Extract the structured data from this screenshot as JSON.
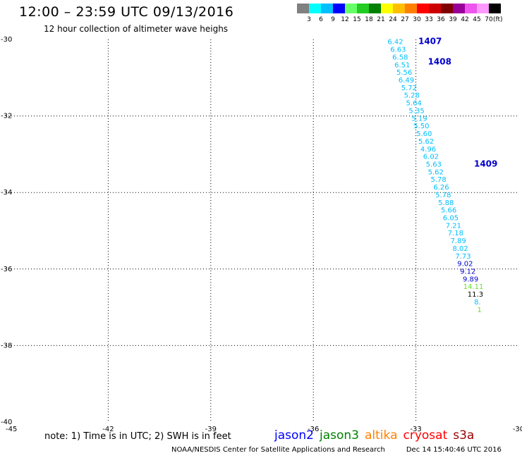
{
  "header": {
    "title": "12:00 – 23:59 UTC 09/13/2016",
    "subtitle": "12 hour collection of altimeter wave heighs"
  },
  "colorbar": {
    "colors": [
      "#808080",
      "#00ffff",
      "#00bfff",
      "#0000ff",
      "#66ff66",
      "#22cc22",
      "#008000",
      "#ffff00",
      "#ffbf00",
      "#ff8000",
      "#ff0000",
      "#cc0000",
      "#800000",
      "#990099",
      "#ee55ee",
      "#ff99ff",
      "#000000"
    ],
    "labels": [
      "3",
      "6",
      "9",
      "12",
      "15",
      "18",
      "21",
      "24",
      "27",
      "30",
      "33",
      "36",
      "39",
      "42",
      "45",
      "70"
    ],
    "unit": "(ft)"
  },
  "map": {
    "lon_ticks": [
      {
        "value": -45,
        "label": "-45"
      },
      {
        "value": -42,
        "label": "-42"
      },
      {
        "value": -39,
        "label": "-39"
      },
      {
        "value": -36,
        "label": "-36"
      },
      {
        "value": -33,
        "label": "-33"
      },
      {
        "value": -30,
        "label": "-30"
      }
    ],
    "lat_ticks": [
      {
        "value": -30,
        "label": "-30"
      },
      {
        "value": -32,
        "label": "-32"
      },
      {
        "value": -34,
        "label": "-34"
      },
      {
        "value": -36,
        "label": "-36"
      },
      {
        "value": -38,
        "label": "-38"
      },
      {
        "value": -40,
        "label": "-40"
      }
    ],
    "passes": [
      {
        "label": "1407",
        "lon": -32.93,
        "lat": -30.05,
        "color": "#0000cc"
      },
      {
        "label": "1408",
        "lon": -32.65,
        "lat": -30.58,
        "color": "#0000cc"
      },
      {
        "label": "1409",
        "lon": -31.3,
        "lat": -33.25,
        "color": "#0000cc"
      }
    ],
    "observations": [
      {
        "v": "6.42",
        "lon": -33.6,
        "lat": -30.05,
        "c": "#00bfff"
      },
      {
        "v": "6.63",
        "lon": -33.52,
        "lat": -30.25,
        "c": "#00bfff"
      },
      {
        "v": "6.58",
        "lon": -33.46,
        "lat": -30.45,
        "c": "#00bfff"
      },
      {
        "v": "6.51",
        "lon": -33.4,
        "lat": -30.65,
        "c": "#00bfff"
      },
      {
        "v": "5.56",
        "lon": -33.34,
        "lat": -30.85,
        "c": "#00bfff"
      },
      {
        "v": "6.49",
        "lon": -33.28,
        "lat": -31.05,
        "c": "#00bfff"
      },
      {
        "v": "5.72",
        "lon": -33.2,
        "lat": -31.25,
        "c": "#00bfff"
      },
      {
        "v": "5.28",
        "lon": -33.12,
        "lat": -31.45,
        "c": "#00bfff"
      },
      {
        "v": "5.64",
        "lon": -33.06,
        "lat": -31.65,
        "c": "#00bfff"
      },
      {
        "v": "5.35",
        "lon": -32.98,
        "lat": -31.85,
        "c": "#00bfff"
      },
      {
        "v": "5.19",
        "lon": -32.9,
        "lat": -32.05,
        "c": "#00bfff"
      },
      {
        "v": "5.50",
        "lon": -32.84,
        "lat": -32.25,
        "c": "#00bfff"
      },
      {
        "v": "5.60",
        "lon": -32.76,
        "lat": -32.45,
        "c": "#00bfff"
      },
      {
        "v": "5.62",
        "lon": -32.7,
        "lat": -32.65,
        "c": "#00bfff"
      },
      {
        "v": "4.96",
        "lon": -32.64,
        "lat": -32.85,
        "c": "#00bfff"
      },
      {
        "v": "6.02",
        "lon": -32.56,
        "lat": -33.05,
        "c": "#00bfff"
      },
      {
        "v": "5.63",
        "lon": -32.48,
        "lat": -33.25,
        "c": "#00bfff"
      },
      {
        "v": "5.62",
        "lon": -32.42,
        "lat": -33.45,
        "c": "#00bfff"
      },
      {
        "v": "5.78",
        "lon": -32.34,
        "lat": -33.65,
        "c": "#00bfff"
      },
      {
        "v": "6.26",
        "lon": -32.26,
        "lat": -33.85,
        "c": "#00bfff"
      },
      {
        "v": "5.78",
        "lon": -32.2,
        "lat": -34.05,
        "c": "#00bfff"
      },
      {
        "v": "5.88",
        "lon": -32.12,
        "lat": -34.25,
        "c": "#00bfff"
      },
      {
        "v": "5.66",
        "lon": -32.04,
        "lat": -34.45,
        "c": "#00bfff"
      },
      {
        "v": "6.05",
        "lon": -31.98,
        "lat": -34.65,
        "c": "#00bfff"
      },
      {
        "v": "7.21",
        "lon": -31.9,
        "lat": -34.85,
        "c": "#00bfff"
      },
      {
        "v": "7.18",
        "lon": -31.84,
        "lat": -35.05,
        "c": "#00bfff"
      },
      {
        "v": "7.89",
        "lon": -31.76,
        "lat": -35.25,
        "c": "#00bfff"
      },
      {
        "v": "8.02",
        "lon": -31.7,
        "lat": -35.45,
        "c": "#00bfff"
      },
      {
        "v": "7.73",
        "lon": -31.62,
        "lat": -35.65,
        "c": "#00bfff"
      },
      {
        "v": "9.02",
        "lon": -31.56,
        "lat": -35.85,
        "c": "#0000cc"
      },
      {
        "v": "9.12",
        "lon": -31.48,
        "lat": -36.05,
        "c": "#0000cc"
      },
      {
        "v": "9.89",
        "lon": -31.4,
        "lat": -36.25,
        "c": "#0000cc"
      },
      {
        "v": "14.11",
        "lon": -31.32,
        "lat": -36.45,
        "c": "#66dd33"
      },
      {
        "v": "11.3",
        "lon": -31.26,
        "lat": -36.65,
        "c": "#000000"
      },
      {
        "v": "8.",
        "lon": -31.2,
        "lat": -36.85,
        "c": "#00bfff"
      },
      {
        "v": "1",
        "lon": -31.14,
        "lat": -37.05,
        "c": "#66dd33"
      }
    ]
  },
  "footer": {
    "note": "note: 1) Time is in UTC; 2) SWH is in feet",
    "legend": [
      {
        "name": "jason2",
        "color": "#0000ff"
      },
      {
        "name": "jason3",
        "color": "#008000"
      },
      {
        "name": "altika",
        "color": "#ff8000"
      },
      {
        "name": "cryosat",
        "color": "#ff0000"
      },
      {
        "name": "s3a",
        "color": "#990000"
      }
    ],
    "credit": "NOAA/NESDIS Center for Satellite Applications and Research",
    "timestamp": "Dec 14 15:40:46 UTC 2016"
  }
}
